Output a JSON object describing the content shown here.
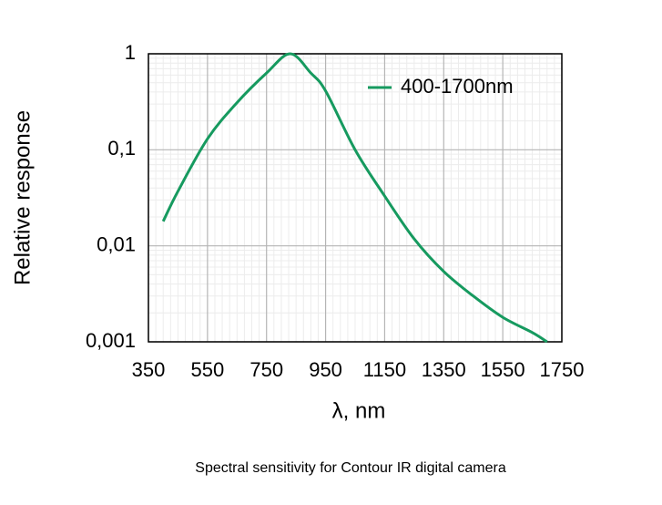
{
  "chart_data": {
    "type": "line",
    "caption": "Spectral sensitivity for Contour IR digital camera",
    "xlabel": "λ, nm",
    "ylabel": "Relative response",
    "x": [
      400,
      450,
      550,
      650,
      750,
      830,
      900,
      950,
      1050,
      1150,
      1250,
      1350,
      1450,
      1550,
      1650,
      1700
    ],
    "series": [
      {
        "name": "400-1700nm",
        "color": "#169a5f",
        "values": [
          0.018,
          0.037,
          0.13,
          0.31,
          0.63,
          1,
          0.63,
          0.41,
          0.1,
          0.033,
          0.0118,
          0.0054,
          0.003,
          0.0018,
          0.00125,
          0.001
        ]
      }
    ],
    "xlim": [
      350,
      1750
    ],
    "xticks": [
      350,
      550,
      750,
      950,
      1150,
      1350,
      1550,
      1750
    ],
    "ylim": [
      0.001,
      1
    ],
    "log_y": true,
    "yticks": [
      {
        "value": 0.001,
        "label": "0,001"
      },
      {
        "value": 0.01,
        "label": "0,01"
      },
      {
        "value": 0.1,
        "label": "0,1"
      },
      1
    ],
    "grid": true,
    "legend": "top-right"
  }
}
